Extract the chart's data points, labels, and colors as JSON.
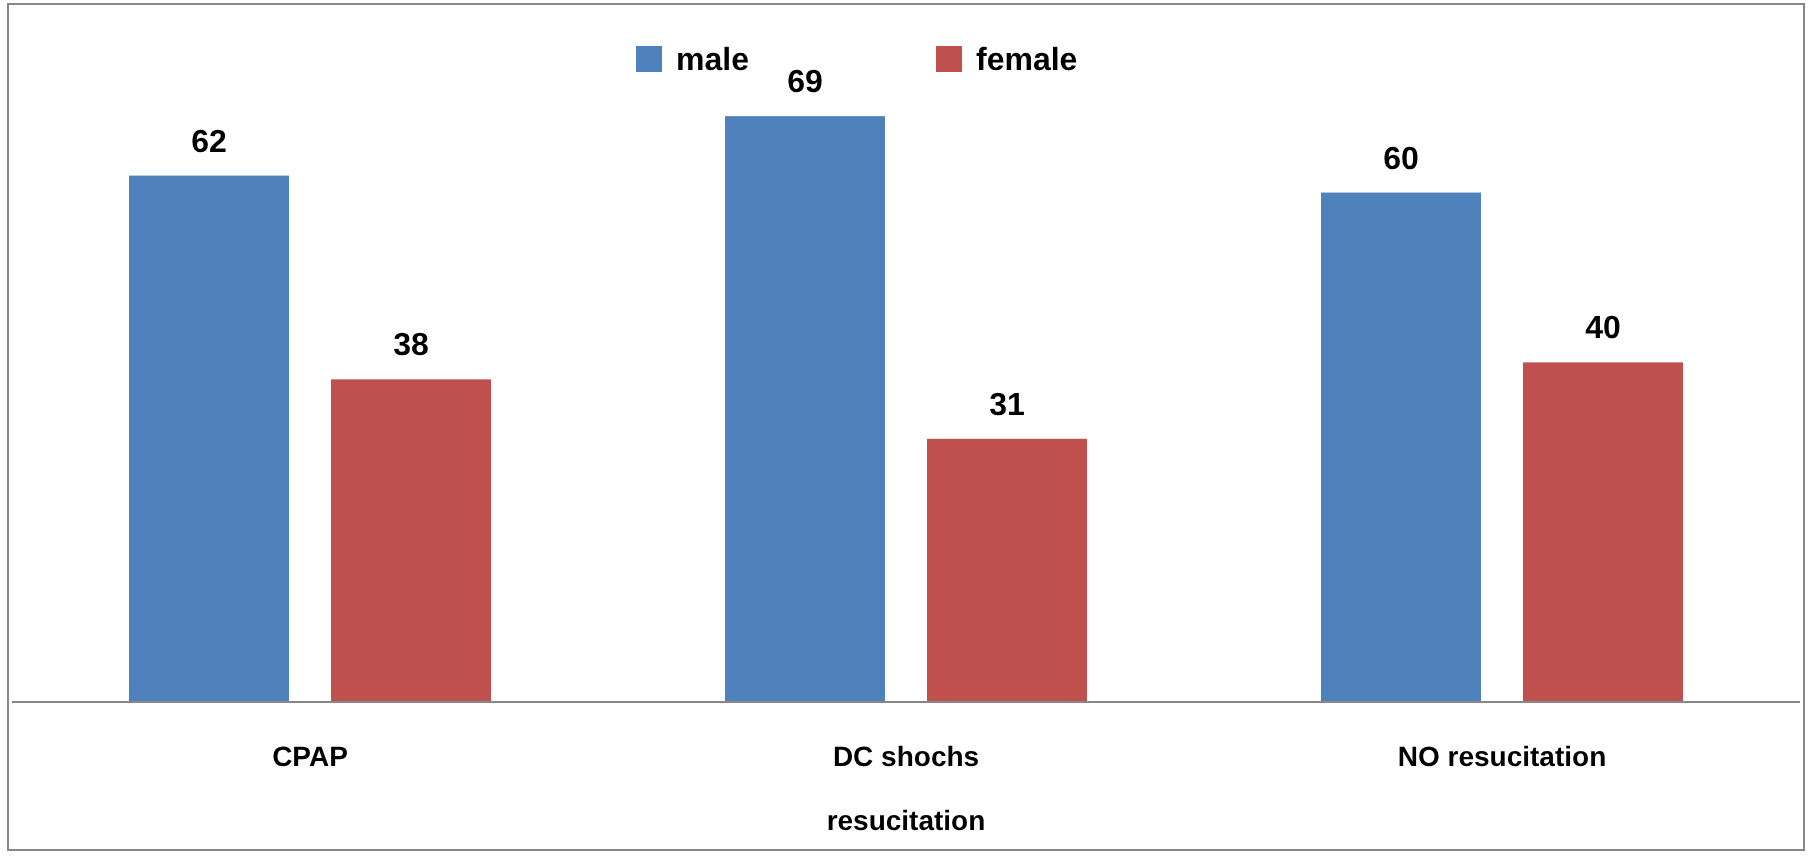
{
  "chart_data": {
    "type": "bar",
    "xlabel": "resucitation",
    "categories": [
      "CPAP",
      "DC shochs",
      "NO resucitation"
    ],
    "series": [
      {
        "name": "male",
        "color": "#4f81bd",
        "values": [
          62,
          69,
          60
        ]
      },
      {
        "name": "female",
        "color": "#c0504d",
        "values": [
          38,
          31,
          40
        ]
      }
    ],
    "data_labels": true,
    "legend": "top"
  }
}
